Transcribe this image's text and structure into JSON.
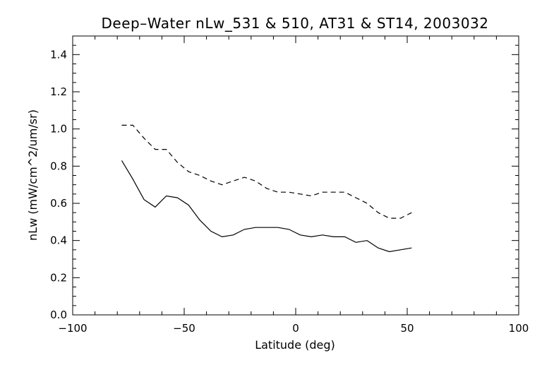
{
  "chart_data": {
    "type": "line",
    "title": "Deep–Water nLw_531 & 510, AT31 & ST14, 2003032",
    "xlabel": "Latitude (deg)",
    "ylabel": "nLw (mW/cm^2/um/sr)",
    "xlim": [
      -100,
      100
    ],
    "ylim": [
      0.0,
      1.5
    ],
    "x_ticks": [
      -100,
      -50,
      0,
      50,
      100
    ],
    "x_tick_labels": [
      "−100",
      "−50",
      "0",
      "50",
      "100"
    ],
    "y_ticks": [
      0.0,
      0.2,
      0.4,
      0.6,
      0.8,
      1.0,
      1.2,
      1.4
    ],
    "y_tick_labels": [
      "0.0",
      "0.2",
      "0.4",
      "0.6",
      "0.8",
      "1.0",
      "1.2",
      "1.4"
    ],
    "grid": false,
    "series": [
      {
        "line_style": "solid",
        "color": "#000000",
        "x": [
          -78,
          -73,
          -68,
          -63,
          -58,
          -53,
          -48,
          -43,
          -38,
          -33,
          -28,
          -23,
          -18,
          -13,
          -8,
          -3,
          2,
          7,
          12,
          17,
          22,
          27,
          32,
          37,
          42,
          47,
          52
        ],
        "y": [
          0.83,
          0.73,
          0.62,
          0.58,
          0.64,
          0.63,
          0.59,
          0.51,
          0.45,
          0.42,
          0.43,
          0.46,
          0.47,
          0.47,
          0.47,
          0.46,
          0.43,
          0.42,
          0.43,
          0.42,
          0.42,
          0.39,
          0.4,
          0.36,
          0.34,
          0.35,
          0.36
        ]
      },
      {
        "line_style": "dashed",
        "color": "#000000",
        "x": [
          -78,
          -73,
          -68,
          -63,
          -58,
          -53,
          -48,
          -43,
          -38,
          -33,
          -28,
          -23,
          -18,
          -13,
          -8,
          -3,
          2,
          7,
          12,
          17,
          22,
          27,
          32,
          37,
          42,
          47,
          52
        ],
        "y": [
          1.02,
          1.02,
          0.95,
          0.89,
          0.89,
          0.82,
          0.77,
          0.75,
          0.72,
          0.7,
          0.72,
          0.74,
          0.72,
          0.68,
          0.66,
          0.66,
          0.65,
          0.64,
          0.66,
          0.66,
          0.66,
          0.63,
          0.6,
          0.55,
          0.52,
          0.52,
          0.55
        ]
      }
    ]
  }
}
